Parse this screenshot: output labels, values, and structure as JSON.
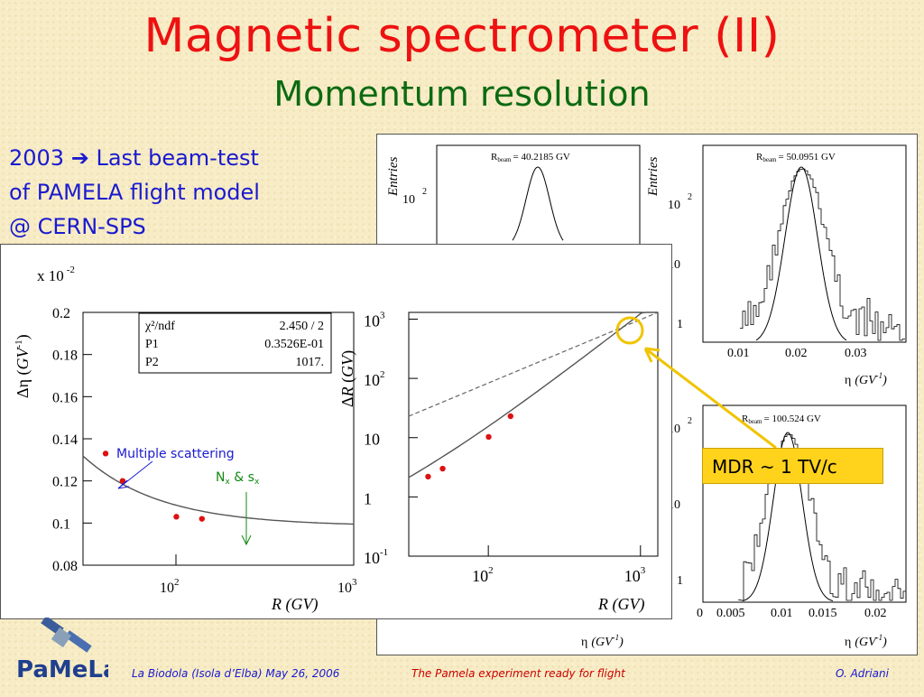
{
  "title": "Magnetic spectrometer (II)",
  "subtitle": "Momentum resolution",
  "bullet": {
    "line1_year": "2003",
    "line1_arrow": "➔",
    "line1_rest": "Last beam-test",
    "line2": "of PAMELA flight model",
    "line3": "@ CERN-SPS"
  },
  "callout": {
    "mdr_label": "MDR ~ 1 TV/c",
    "multiple_scattering": "Multiple scattering",
    "n_label": "N",
    "n_sub": "x",
    "amp": " & s",
    "s_sub": "x"
  },
  "fit_box": {
    "rows": [
      {
        "name": "χ²/ndf",
        "value": "2.450   /   2"
      },
      {
        "name": "P1",
        "value": "0.3526E-01"
      },
      {
        "name": "P2",
        "value": "1017."
      }
    ]
  },
  "plots": {
    "eta_plot": {
      "scale": "x 10",
      "scale_exp": "-2",
      "yticks": [
        "0.2",
        "0.18",
        "0.16",
        "0.14",
        "0.12",
        "0.1",
        "0.08"
      ],
      "xtick_base": "10",
      "xtick_exps": [
        "2",
        "3"
      ],
      "xlabel": "R (GV)"
    },
    "dr_plot": {
      "ytick_base": "10",
      "yticks": [
        {
          "b": "10",
          "e": "3"
        },
        {
          "b": "10",
          "e": "2"
        },
        {
          "b": "10",
          "e": ""
        },
        {
          "b": "1",
          "e": ""
        },
        {
          "b": "10",
          "e": "-1"
        }
      ],
      "xticks": [
        {
          "b": "10",
          "e": "2"
        },
        {
          "b": "10",
          "e": "3"
        }
      ],
      "xlabel": "R (GV)"
    },
    "hist1_label": "R",
    "hist1_sub": "beam",
    "hist1_val": "= 40.2185 GV",
    "hist2_label": "R",
    "hist2_sub": "beam",
    "hist2_val": "= 50.0951 GV",
    "hist3_label": "R",
    "hist3_sub": "beam",
    "hist3_val": "= 100.524 GV",
    "entries_label": "Entries",
    "hist2_xticks": [
      "0.01",
      "0.02",
      "0.03"
    ],
    "hist3_xticks": [
      "0",
      "0.005",
      "0.01",
      "0.015",
      "0.02"
    ],
    "hist_yticks_2": [
      "10",
      "1"
    ],
    "eta_axis": "η",
    "eta_units": "(GV",
    "eta_units_exp": "-1",
    "eta_units_close": ")"
  },
  "chart_data": [
    {
      "type": "scatter",
      "title": "",
      "xlabel": "R (GV)",
      "ylabel": "Δη (GV⁻¹)",
      "y_multiplier": "x 10^-2",
      "x_scale": "log",
      "xlim": [
        30,
        1000
      ],
      "ylim": [
        0.08,
        0.2
      ],
      "series": [
        {
          "values_x": [
            40.2,
            50.1,
            100.5,
            140
          ],
          "values_y": [
            0.133,
            0.12,
            0.103,
            0.102
          ]
        }
      ],
      "fit": {
        "chi2_ndf": "2.450 / 2",
        "P1": "0.3526E-01",
        "P2": "1017."
      }
    },
    {
      "type": "scatter",
      "title": "",
      "xlabel": "R (GV)",
      "ylabel": "ΔR (GV)",
      "x_scale": "log",
      "y_scale": "log",
      "xlim": [
        30,
        1300
      ],
      "ylim": [
        0.1,
        1300
      ],
      "series": [
        {
          "values_x": [
            40.2,
            50.1,
            100.5,
            140
          ],
          "values_y": [
            2.2,
            3.0,
            10.3,
            23
          ]
        }
      ]
    },
    {
      "type": "bar",
      "title": "R_beam = 40.2185 GV",
      "xlabel": "",
      "ylabel": "Entries",
      "y_scale": "log",
      "yticks": [
        "10 2"
      ]
    },
    {
      "type": "bar",
      "title": "R_beam = 50.0951 GV",
      "xlabel": "η (GV-1)",
      "ylabel": "Entries",
      "y_scale": "log",
      "xticks": [
        0.01,
        0.02,
        0.03
      ],
      "yticks": [
        "1",
        "10",
        "10 2"
      ]
    },
    {
      "type": "bar",
      "title": "R_beam = 100.524 GV",
      "xlabel": "η (GV-1)",
      "ylabel": "",
      "y_scale": "log",
      "xticks": [
        0,
        0.005,
        0.01,
        0.015,
        0.02
      ],
      "yticks": [
        "1",
        "10",
        "10 2"
      ]
    }
  ],
  "footer": {
    "left": "La Biodola (Isola d’Elba) May 26, 2006",
    "middle": "The Pamela experiment ready for flight",
    "right": "O. Adriani"
  },
  "logo": {
    "text": "PaMeLa"
  }
}
